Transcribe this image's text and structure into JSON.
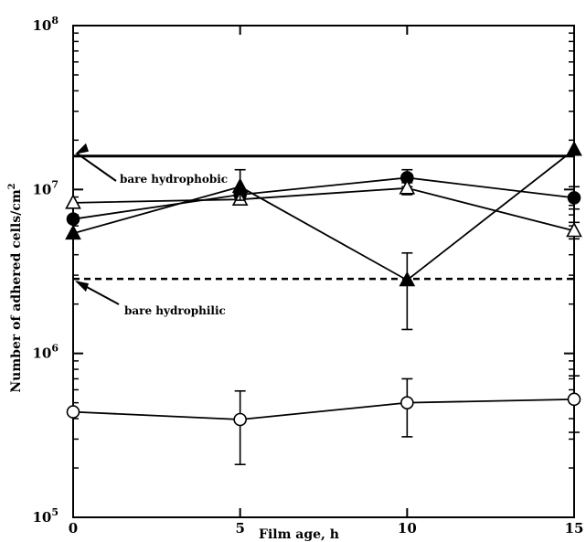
{
  "chart_data": {
    "type": "line",
    "xlabel": "Film age, h",
    "ylabel_main": "Number of adhered cells/cm",
    "ylabel_sup": "2",
    "yscale": "log",
    "xlim": [
      0,
      15
    ],
    "ylim": [
      100000,
      100000000
    ],
    "grid": false,
    "x_ticks": [
      "0",
      "5",
      "10",
      "15"
    ],
    "y_ticks": [
      {
        "base": "10",
        "exp": "5",
        "value": 100000
      },
      {
        "base": "10",
        "exp": "6",
        "value": 1000000
      },
      {
        "base": "10",
        "exp": "7",
        "value": 10000000
      },
      {
        "base": "10",
        "exp": "8",
        "value": 100000000
      }
    ],
    "series": [
      {
        "marker": "filled-circle",
        "x": [
          0,
          5,
          10,
          15
        ],
        "y": [
          6600000,
          9300000,
          11800000,
          8900000
        ],
        "err_low": [
          null,
          null,
          10400000,
          7600000
        ],
        "err_high": [
          null,
          null,
          13200000,
          10400000
        ]
      },
      {
        "marker": "open-triangle",
        "x": [
          0,
          5,
          10,
          15
        ],
        "y": [
          8300000,
          8700000,
          10200000,
          5600000
        ],
        "err_low": [
          null,
          8200000,
          9300000,
          5000000
        ],
        "err_high": [
          null,
          9200000,
          11000000,
          6300000
        ]
      },
      {
        "marker": "filled-triangle",
        "x": [
          0,
          5,
          10,
          15
        ],
        "y": [
          5400000,
          10400000,
          2800000,
          17500000
        ],
        "err_low": [
          null,
          8600000,
          1400000,
          null
        ],
        "err_high": [
          null,
          13200000,
          4100000,
          null
        ]
      },
      {
        "marker": "open-circle",
        "x": [
          0,
          5,
          10,
          15
        ],
        "y": [
          440000,
          395000,
          500000,
          525000
        ],
        "err_low": [
          null,
          210000,
          310000,
          330000
        ],
        "err_high": [
          null,
          590000,
          700000,
          730000
        ]
      }
    ],
    "reference_lines": [
      {
        "label": "bare hydrophobic",
        "y": 16000000,
        "style": "solid"
      },
      {
        "label": "bare hydrophilic",
        "y": 2850000,
        "style": "dashed"
      }
    ]
  }
}
